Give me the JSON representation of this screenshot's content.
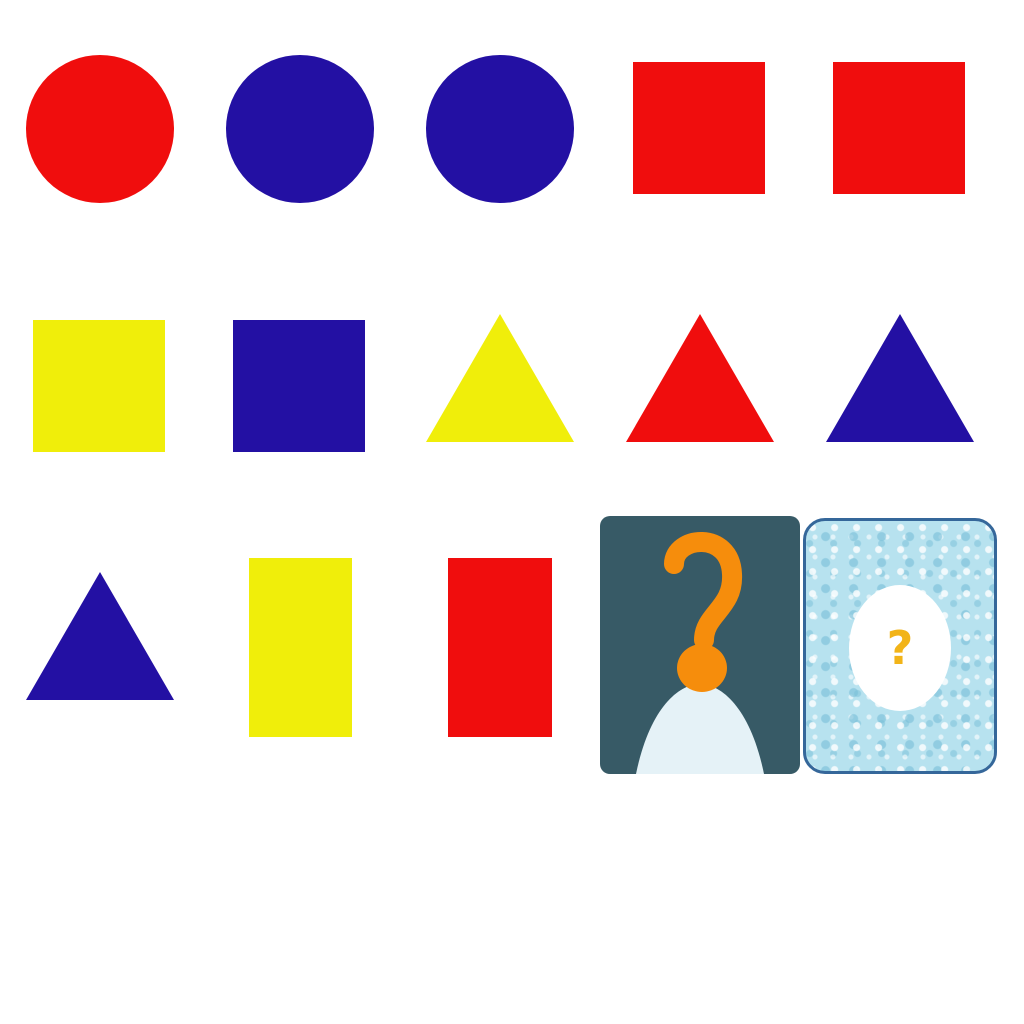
{
  "colors": {
    "red": "#f00d0d",
    "blue": "#2310a3",
    "yellow": "#f0ee0a",
    "card_dark": "#375a66",
    "card_orange": "#f68d0c",
    "card_light": "#e5f2f7",
    "card_water": "#b7e2ef",
    "card_border": "#35679a",
    "qmark_yellow": "#f2b418"
  },
  "pieces": [
    {
      "shape": "circle",
      "color": "red"
    },
    {
      "shape": "circle",
      "color": "blue"
    },
    {
      "shape": "circle",
      "color": "blue"
    },
    {
      "shape": "square",
      "color": "red"
    },
    {
      "shape": "square",
      "color": "red"
    },
    {
      "shape": "square",
      "color": "yellow"
    },
    {
      "shape": "square",
      "color": "blue"
    },
    {
      "shape": "triangle",
      "color": "yellow"
    },
    {
      "shape": "triangle",
      "color": "red"
    },
    {
      "shape": "triangle",
      "color": "blue"
    },
    {
      "shape": "triangle",
      "color": "blue"
    },
    {
      "shape": "rectangle",
      "color": "yellow"
    },
    {
      "shape": "rectangle",
      "color": "red"
    }
  ],
  "cards": {
    "mystery_person": {
      "icon": "question-person-icon"
    },
    "mystery_card": {
      "icon": "question-mark-icon",
      "symbol": "?"
    }
  }
}
